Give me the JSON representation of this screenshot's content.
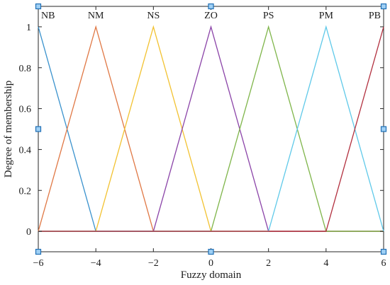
{
  "chart_data": {
    "type": "line",
    "xlabel": "Fuzzy domain",
    "ylabel": "Degree of membership",
    "xlim": [
      -6,
      6
    ],
    "ylim": [
      -0.1,
      1.1
    ],
    "xticks": [
      -6,
      -4,
      -2,
      0,
      2,
      4,
      6
    ],
    "xtick_labels": [
      "−6",
      "−4",
      "−2",
      "0",
      "2",
      "4",
      "6"
    ],
    "yticks": [
      0,
      0.2,
      0.4,
      0.6,
      0.8,
      1
    ],
    "ytick_labels": [
      "0",
      "0.2",
      "0.4",
      "0.6",
      "0.8",
      "1"
    ],
    "grid": false,
    "series": [
      {
        "name": "NB",
        "color": "#3a92cd",
        "x": [
          -6,
          -6,
          -4,
          6
        ],
        "y": [
          1,
          1,
          0,
          0
        ]
      },
      {
        "name": "NM",
        "color": "#e07845",
        "x": [
          -6,
          -4,
          -2,
          6
        ],
        "y": [
          0,
          1,
          0,
          0
        ]
      },
      {
        "name": "NS",
        "color": "#f2c231",
        "x": [
          -6,
          -4,
          -2,
          0,
          6
        ],
        "y": [
          0,
          0,
          1,
          0,
          0
        ]
      },
      {
        "name": "ZO",
        "color": "#8b44a8",
        "x": [
          -6,
          -2,
          0,
          2,
          6
        ],
        "y": [
          0,
          0,
          1,
          0,
          0
        ]
      },
      {
        "name": "PS",
        "color": "#7fb54a",
        "x": [
          -6,
          0,
          2,
          4,
          6
        ],
        "y": [
          0,
          0,
          1,
          0,
          0
        ]
      },
      {
        "name": "PM",
        "color": "#5fc9e9",
        "x": [
          -6,
          2,
          4,
          6
        ],
        "y": [
          0,
          0,
          1,
          0
        ]
      },
      {
        "name": "PB",
        "color": "#b2303f",
        "x": [
          -6,
          4,
          6
        ],
        "y": [
          0,
          0,
          1
        ]
      }
    ]
  }
}
